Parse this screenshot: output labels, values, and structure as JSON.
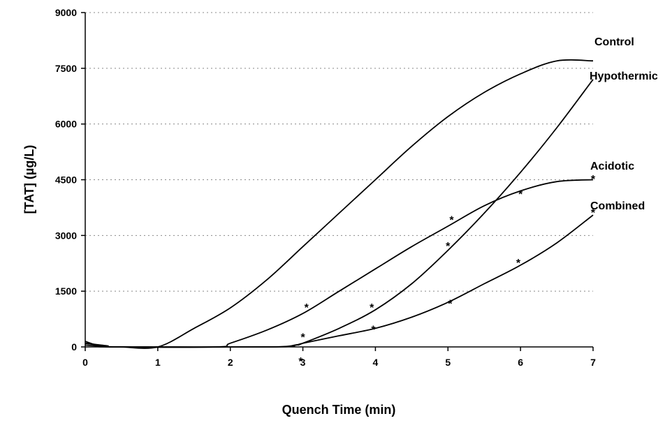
{
  "chart_data": {
    "type": "line",
    "title": "",
    "xlabel": "Quench Time (min)",
    "ylabel": "[TAT] (µg/L)",
    "xlim": [
      0,
      7
    ],
    "ylim": [
      0,
      9000
    ],
    "xticks": [
      "0",
      "1",
      "2",
      "3",
      "4",
      "5",
      "6",
      "7"
    ],
    "yticks": [
      "0",
      "1500",
      "3000",
      "4500",
      "6000",
      "7500",
      "9000"
    ],
    "grid": "horizontal-dotted",
    "legend": "inline-labels-at-right",
    "marker_symbol": "*",
    "series": [
      {
        "name": "Control",
        "x": [
          0,
          0.1,
          0.2,
          0.3,
          0.5,
          1,
          1.5,
          2,
          2.5,
          3,
          3.5,
          4,
          4.5,
          5,
          5.5,
          6,
          6.5,
          7
        ],
        "values": [
          150,
          80,
          30,
          0,
          0,
          0,
          500,
          1050,
          1800,
          2700,
          3600,
          4500,
          5400,
          6200,
          6850,
          7350,
          7700,
          7700
        ],
        "markers": []
      },
      {
        "name": "Hypothermic",
        "x": [
          0,
          0.3,
          0.5,
          2.5,
          2.9,
          3,
          3.5,
          4,
          4.5,
          5,
          5.5,
          6,
          6.5,
          7
        ],
        "values": [
          100,
          30,
          0,
          0,
          50,
          100,
          500,
          1000,
          1700,
          2600,
          3600,
          4700,
          5900,
          7200
        ],
        "markers": [
          {
            "x": 3,
            "y": 350
          },
          {
            "x": 3.95,
            "y": 1150
          },
          {
            "x": 5.0,
            "y": 2800
          },
          {
            "x": 6.0,
            "y": 4200
          }
        ]
      },
      {
        "name": "Acidotic",
        "x": [
          0,
          0.2,
          0.4,
          1.8,
          2,
          2.5,
          3,
          3.5,
          4,
          4.5,
          5,
          5.5,
          6,
          6.5,
          7
        ],
        "values": [
          100,
          40,
          0,
          0,
          100,
          450,
          900,
          1500,
          2100,
          2700,
          3250,
          3800,
          4200,
          4450,
          4500
        ],
        "markers": [
          {
            "x": 3.05,
            "y": 1150
          },
          {
            "x": 5.05,
            "y": 3500
          },
          {
            "x": 7.0,
            "y": 4600
          }
        ]
      },
      {
        "name": "Combined",
        "x": [
          0,
          0.2,
          0.4,
          2.6,
          2.9,
          3,
          3.5,
          4,
          4.5,
          5,
          5.5,
          6,
          6.5,
          7
        ],
        "values": [
          50,
          20,
          0,
          0,
          50,
          100,
          300,
          500,
          800,
          1200,
          1700,
          2200,
          2800,
          3550
        ],
        "markers": [
          {
            "x": 2.97,
            "y": -300
          },
          {
            "x": 3.97,
            "y": 550
          },
          {
            "x": 5.03,
            "y": 1250
          },
          {
            "x": 5.97,
            "y": 2350
          },
          {
            "x": 7.0,
            "y": 3700
          }
        ]
      }
    ]
  }
}
